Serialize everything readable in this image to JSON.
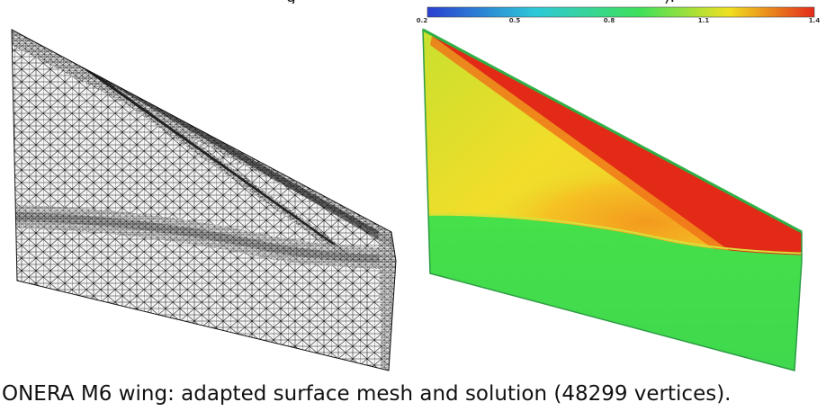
{
  "top_partial_text": {
    "left": "g",
    "right": ")."
  },
  "colorbar": {
    "ticks": [
      "0.2",
      "0.5",
      "0.8",
      "1.1",
      "1.4"
    ],
    "colors": [
      "#2a3fd0",
      "#2ec9d9",
      "#3fe05a",
      "#f0e020",
      "#e42a1a"
    ]
  },
  "panels": {
    "left": "mesh",
    "right": "solution"
  },
  "caption": "ONERA M6 wing: adapted surface mesh and solution (48299 vertices)."
}
